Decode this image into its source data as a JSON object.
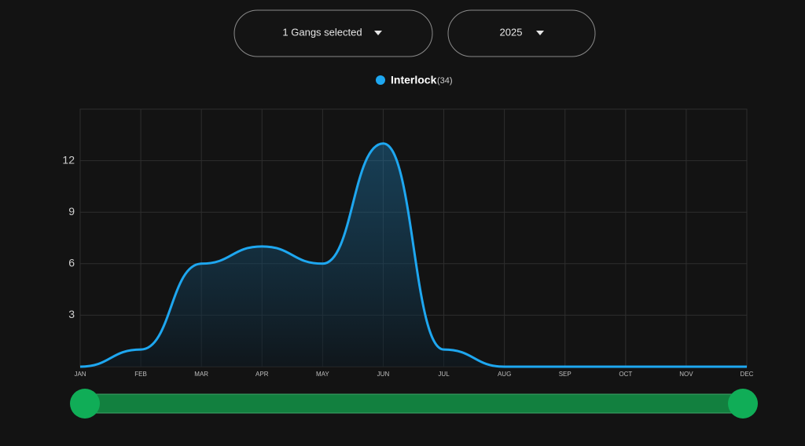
{
  "controls": {
    "gang_select": "1 Gangs selected",
    "year_select": "2025"
  },
  "chart_data": {
    "type": "area",
    "categories": [
      "JAN",
      "FEB",
      "MAR",
      "APR",
      "MAY",
      "JUN",
      "JUL",
      "AUG",
      "SEP",
      "OCT",
      "NOV",
      "DEC"
    ],
    "series": [
      {
        "name": "Interlock",
        "total_label": "(34)",
        "color": "#1ea7f0",
        "values": [
          0,
          1,
          6,
          7,
          6,
          13,
          1,
          0,
          0,
          0,
          0,
          0
        ]
      }
    ],
    "ylim": [
      0,
      15
    ],
    "yticks": [
      3,
      6,
      9,
      12
    ],
    "grid": true
  }
}
